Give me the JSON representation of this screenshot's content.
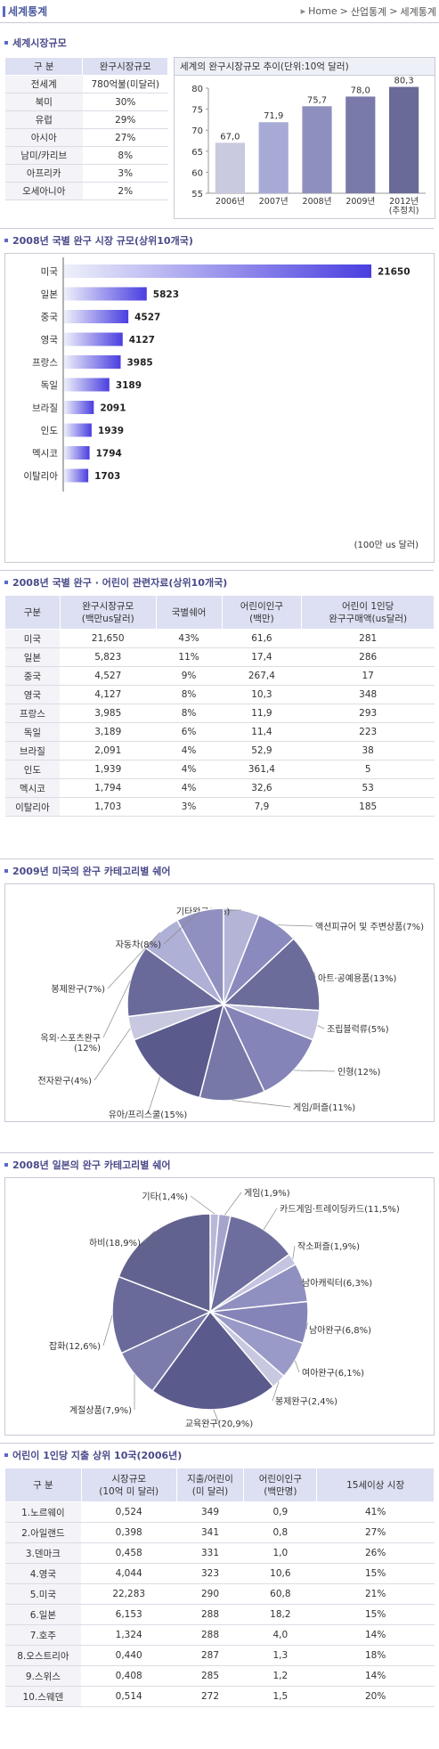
{
  "header": {
    "title": "세계통계",
    "breadcrumb": [
      "Home",
      "산업통계",
      "세계통계"
    ]
  },
  "s1": {
    "title": "세계시장규모",
    "table": {
      "headers": [
        "구 분",
        "완구시장규모"
      ],
      "rows": [
        [
          "전세계",
          "780억불(미달러)"
        ],
        [
          "북미",
          "30%"
        ],
        [
          "유럽",
          "29%"
        ],
        [
          "아시아",
          "27%"
        ],
        [
          "남미/카리브",
          "8%"
        ],
        [
          "아프리카",
          "3%"
        ],
        [
          "오세아니아",
          "2%"
        ]
      ]
    }
  },
  "chart1_title": "세계의 완구시장규모 추이(단위:10억 달러)",
  "s2": {
    "title": "2008년 국별 완구 시장 규모(상위10개국)",
    "unit": "(100만 us 달러)"
  },
  "s3": {
    "title": "2008년 국별 완구 · 어린이 관련자료(상위10개국)",
    "headers": [
      "구분",
      "완구시장규모\n(백만us달러)",
      "국별쉐어",
      "어린이인구\n(백만)",
      "어린이 1인당\n완구구매액(us달러)"
    ],
    "rows": [
      [
        "미국",
        "21,650",
        "43%",
        "61,6",
        "281"
      ],
      [
        "일본",
        "5,823",
        "11%",
        "17,4",
        "286"
      ],
      [
        "중국",
        "4,527",
        "9%",
        "267,4",
        "17"
      ],
      [
        "영국",
        "4,127",
        "8%",
        "10,3",
        "348"
      ],
      [
        "프랑스",
        "3,985",
        "8%",
        "11,9",
        "293"
      ],
      [
        "독일",
        "3,189",
        "6%",
        "11,4",
        "223"
      ],
      [
        "브라질",
        "2,091",
        "4%",
        "52,9",
        "38"
      ],
      [
        "인도",
        "1,939",
        "4%",
        "361,4",
        "5"
      ],
      [
        "멕시코",
        "1,794",
        "4%",
        "32,6",
        "53"
      ],
      [
        "이탈리아",
        "1,703",
        "3%",
        "7,9",
        "185"
      ]
    ]
  },
  "s4": {
    "title": "2009년 미국의 완구 카테고리별 쉐어"
  },
  "s5": {
    "title": "2008년 일본의 완구 카테고리별 쉐어"
  },
  "s6": {
    "title": "어린이 1인당 지출 상위 10국(2006년)",
    "headers": [
      "구 분",
      "시장규모\n(10억 미 달러)",
      "지출/어린이\n(미 달러)",
      "어린이인구\n(백만명)",
      "15세이상 시장"
    ],
    "rows": [
      [
        "1.노르웨이",
        "0,524",
        "349",
        "0,9",
        "41%"
      ],
      [
        "2.아일랜드",
        "0,398",
        "341",
        "0,8",
        "27%"
      ],
      [
        "3.덴마크",
        "0,458",
        "331",
        "1,0",
        "26%"
      ],
      [
        "4.영국",
        "4,044",
        "323",
        "10,6",
        "15%"
      ],
      [
        "5.미국",
        "22,283",
        "290",
        "60,8",
        "21%"
      ],
      [
        "6.일본",
        "6,153",
        "288",
        "18,2",
        "15%"
      ],
      [
        "7.호주",
        "1,324",
        "288",
        "4,0",
        "14%"
      ],
      [
        "8.오스트리아",
        "0,440",
        "287",
        "1,3",
        "18%"
      ],
      [
        "9.스위스",
        "0,408",
        "285",
        "1,2",
        "14%"
      ],
      [
        "10.스웨덴",
        "0,514",
        "272",
        "1,5",
        "20%"
      ]
    ]
  },
  "chart_data": [
    {
      "type": "bar",
      "title": "세계의 완구시장규모 추이(단위:10억 달러)",
      "categories": [
        "2006년",
        "2007년",
        "2008년",
        "2009년",
        "2012년\n(추정치)"
      ],
      "values": [
        67.0,
        71.9,
        75.7,
        78.0,
        80.3
      ],
      "value_labels": [
        "67,0",
        "71,9",
        "75,7",
        "78,0",
        "80,3"
      ],
      "ylim": [
        55,
        80
      ],
      "yticks": [
        55,
        60,
        65,
        70,
        75,
        80
      ],
      "colors": [
        "#c9c9df",
        "#a8aad6",
        "#8f8fbf",
        "#7a7aaa",
        "#6a6a98"
      ]
    },
    {
      "type": "bar",
      "orientation": "horizontal",
      "title": "2008년 국별 완구 시장 규모(상위10개국)",
      "categories": [
        "미국",
        "일본",
        "중국",
        "영국",
        "프랑스",
        "독일",
        "브라질",
        "인도",
        "멕시코",
        "이탈리아"
      ],
      "values": [
        21650,
        5823,
        4527,
        4127,
        3985,
        3189,
        2091,
        1939,
        1794,
        1703
      ]
    },
    {
      "type": "pie",
      "title": "2009년 미국의 완구 카테고리별 쉐어",
      "slices": [
        {
          "label": "기타완구(6%)",
          "value": 6,
          "color": "#b4b4d6"
        },
        {
          "label": "액션피규어 및 주변상품(7%)",
          "value": 7,
          "color": "#8a8abf"
        },
        {
          "label": "아트·공예용품(13%)",
          "value": 13,
          "color": "#6c6c9a"
        },
        {
          "label": "조립블럭류(5%)",
          "value": 5,
          "color": "#c4c4e2"
        },
        {
          "label": "인형(12%)",
          "value": 12,
          "color": "#8484b8"
        },
        {
          "label": "게임/퍼즐(11%)",
          "value": 11,
          "color": "#7878a8"
        },
        {
          "label": "유아/프리스쿨(15%)",
          "value": 15,
          "color": "#5a5a8c"
        },
        {
          "label": "전자완구(4%)",
          "value": 4,
          "color": "#c8c8e0"
        },
        {
          "label": "옥외·스포츠완구\n(12%)",
          "value": 12,
          "color": "#6a6a9a"
        },
        {
          "label": "봉제완구(7%)",
          "value": 7,
          "color": "#aeb0d6"
        },
        {
          "label": "자동차(8%)",
          "value": 8,
          "color": "#9090c0"
        }
      ]
    },
    {
      "type": "pie",
      "title": "2008년 일본의 완구 카테고리별 쉐어",
      "slices": [
        {
          "label": "기타(1,4%)",
          "value": 1.4,
          "color": "#b8b8d8"
        },
        {
          "label": "게임(1,9%)",
          "value": 1.9,
          "color": "#a4a4cc"
        },
        {
          "label": "카드게임·트레이딩카드(11,5%)",
          "value": 11.5,
          "color": "#6e6e9e"
        },
        {
          "label": "작소퍼즐(1,9%)",
          "value": 1.9,
          "color": "#c4c4e2"
        },
        {
          "label": "남아캐릭터(6,3%)",
          "value": 6.3,
          "color": "#9090c0"
        },
        {
          "label": "남아완구(6,8%)",
          "value": 6.8,
          "color": "#8484b8"
        },
        {
          "label": "여아완구(6,1%)",
          "value": 6.1,
          "color": "#9a9ac8"
        },
        {
          "label": "봉제완구(2,4%)",
          "value": 2.4,
          "color": "#c8c8e0"
        },
        {
          "label": "교육완구(20,9%)",
          "value": 20.9,
          "color": "#5a5a8c"
        },
        {
          "label": "계절상품(7,9%)",
          "value": 7.9,
          "color": "#7c7cac"
        },
        {
          "label": "잡화(12,6%)",
          "value": 12.6,
          "color": "#6a6a9a"
        },
        {
          "label": "하비(18,9%)",
          "value": 18.9,
          "color": "#62628f"
        }
      ]
    }
  ]
}
